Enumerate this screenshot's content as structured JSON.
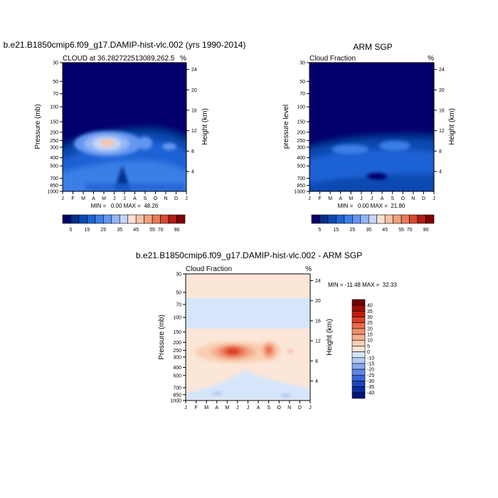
{
  "chart_data": [
    {
      "type": "contour",
      "id": "model",
      "title": "b.e21.B1850cmip6.f09_g17.DAMIP-hist-vlc.002 (yrs 1990-2014)",
      "subtitle_left": "CLOUD at 36.282722513089,262.5",
      "subtitle_right": "%",
      "ylabel": "Pressure (mb)",
      "ylabel_right": "Height (km)",
      "x_ticks": [
        "J",
        "F",
        "M",
        "A",
        "M",
        "J",
        "J",
        "A",
        "S",
        "O",
        "N",
        "D",
        "J"
      ],
      "y_ticks_pressure": [
        "30",
        "50",
        "70",
        "100",
        "150",
        "200",
        "250",
        "300",
        "400",
        "500",
        "700",
        "850",
        "1000"
      ],
      "y_ticks_height": [
        "24",
        "20",
        "16",
        "12",
        "8",
        "4"
      ],
      "stats": "MIN =   0.00 MAX =  48.26",
      "min": 0.0,
      "max": 48.26,
      "colorbar_labels": [
        "5",
        "15",
        "25",
        "35",
        "45",
        "55",
        "70",
        "90"
      ],
      "features": [
        {
          "description": "upper-level cloud maximum",
          "month": "May",
          "pressure_mb": 250,
          "value": 45
        },
        {
          "description": "secondary maximum",
          "month": "Sep",
          "pressure_mb": 250,
          "value": 30
        },
        {
          "description": "low-level minimum",
          "month": "Jun",
          "pressure_mb": 700,
          "value": 5
        }
      ]
    },
    {
      "type": "contour",
      "id": "obs",
      "title": "ARM SGP",
      "subtitle_left": "Cloud Fraction",
      "subtitle_right": "%",
      "ylabel": "pressure level",
      "ylabel_right": "Height (km)",
      "x_ticks": [
        "J",
        "F",
        "M",
        "A",
        "M",
        "J",
        "J",
        "A",
        "S",
        "O",
        "N",
        "D",
        "J"
      ],
      "y_ticks_pressure": [
        "30",
        "50",
        "70",
        "100",
        "150",
        "200",
        "250",
        "300",
        "400",
        "500",
        "700",
        "850",
        "1000"
      ],
      "y_ticks_height": [
        "24",
        "20",
        "16",
        "12",
        "8",
        "4"
      ],
      "stats": "MIN =   0.00 MAX =  21.80",
      "min": 0.0,
      "max": 21.8,
      "colorbar_labels": [
        "5",
        "15",
        "25",
        "35",
        "45",
        "55",
        "70",
        "90"
      ]
    },
    {
      "type": "contour",
      "id": "diff",
      "title": "b.e21.B1850cmip6.f09_g17.DAMIP-hist-vlc.002 - ARM SGP",
      "subtitle_left": "Cloud Fraction",
      "subtitle_right": "%",
      "ylabel": "Pressure (mb)",
      "ylabel_right": "Height (km)",
      "x_ticks": [
        "J",
        "F",
        "M",
        "A",
        "M",
        "J",
        "J",
        "A",
        "S",
        "O",
        "N",
        "D",
        "J"
      ],
      "y_ticks_pressure": [
        "30",
        "50",
        "70",
        "100",
        "150",
        "200",
        "250",
        "300",
        "400",
        "500",
        "700",
        "850",
        "1000"
      ],
      "y_ticks_height": [
        "24",
        "20",
        "16",
        "12",
        "8",
        "4"
      ],
      "stats": "MIN = -11.48 MAX =  32.33",
      "min": -11.48,
      "max": 32.33,
      "colorbar_labels": [
        "40",
        "35",
        "30",
        "25",
        "20",
        "15",
        "10",
        "5",
        "0",
        "-10",
        "-15",
        "-20",
        "-25",
        "-30",
        "-35",
        "-40"
      ],
      "features": [
        {
          "description": "positive bias maximum",
          "month": "May",
          "pressure_mb": 250,
          "value": 30
        },
        {
          "description": "secondary positive bias",
          "month": "Sep",
          "pressure_mb": 250,
          "value": 25
        },
        {
          "description": "negative bias band",
          "pressure_mb": 60,
          "value": -5
        }
      ]
    }
  ],
  "colors": {
    "seq": [
      "#03006d",
      "#02308a",
      "#0c4ab2",
      "#1e62d4",
      "#3b7ee6",
      "#6496f0",
      "#94b5f5",
      "#c6d6f8",
      "#f9e2d5",
      "#f6c3a6",
      "#f2a17d",
      "#e97a58",
      "#d54a30",
      "#b01d16",
      "#800000"
    ],
    "div_pos": [
      "#fbe6d8",
      "#f9cfb2",
      "#f4b091",
      "#ef906e",
      "#e86b4b",
      "#dd3f25",
      "#c41a0d",
      "#9f0c07",
      "#6e0000"
    ],
    "div_neg": [
      "#d6e6fa",
      "#b2cbf6",
      "#87a9ef",
      "#5d87e6",
      "#3a64d8",
      "#1d45bd",
      "#0a2b9d",
      "#00137c"
    ]
  }
}
